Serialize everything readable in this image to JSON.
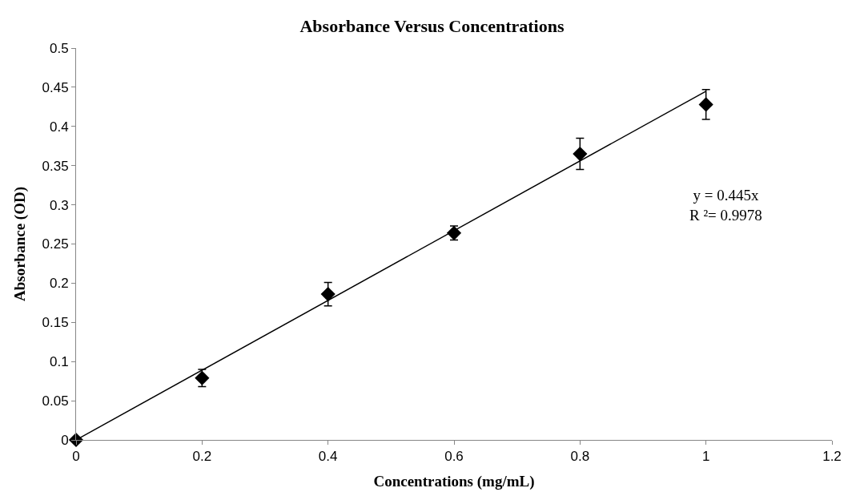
{
  "chart_data": {
    "type": "scatter",
    "title": "Absorbance Versus Concentrations",
    "xlabel": "Concentrations (mg/mL)",
    "ylabel": "Absorbance (OD)",
    "xlim": [
      0,
      1.2
    ],
    "xticks": [
      0,
      0.2,
      0.4,
      0.6,
      0.8,
      1,
      1.2
    ],
    "ylim": [
      0,
      0.5
    ],
    "yticks": [
      0,
      0.05,
      0.1,
      0.15,
      0.2,
      0.25,
      0.3,
      0.35,
      0.4,
      0.45,
      0.5
    ],
    "legend": false,
    "marker": "diamond",
    "series": [
      {
        "color": "#000000",
        "x": [
          0,
          0.2,
          0.4,
          0.6,
          0.8,
          1
        ],
        "values": [
          0,
          0.079,
          0.186,
          0.264,
          0.365,
          0.428
        ],
        "errors": [
          null,
          0.011,
          0.015,
          0.009,
          0.02,
          0.019
        ]
      },
      {
        "type": "line",
        "color": "#000000",
        "x": [
          0,
          1
        ],
        "values": [
          0,
          0.445
        ],
        "marker": "none",
        "line_style": "solid"
      }
    ],
    "annotations": [
      {
        "text": "y = 0.445x\nR ²= 0.9978"
      }
    ]
  }
}
